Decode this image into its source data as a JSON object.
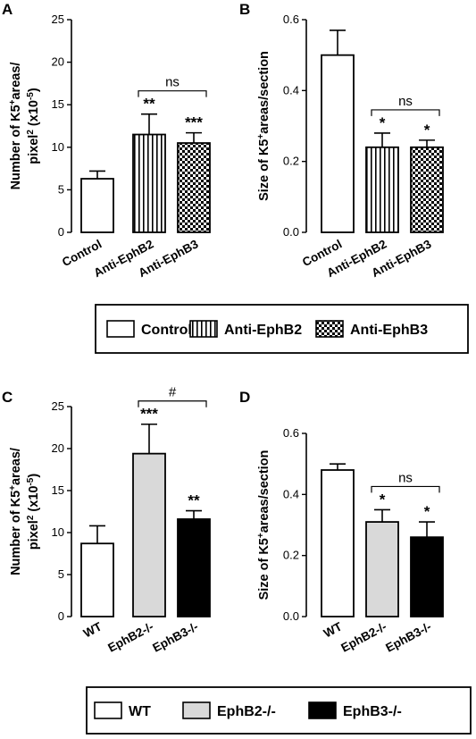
{
  "chart_data": [
    {
      "panel": "A",
      "type": "bar",
      "ylabel_line1": "Number of K5",
      "ylabel_sup": "+",
      "ylabel_line1_end": "areas/",
      "ylabel_line2": "pixel",
      "ylabel_line2_sup": "2",
      "ylabel_line2_mid": " (x10",
      "ylabel_line2_sup2": "-5",
      "ylabel_line2_end": ")",
      "ylim": [
        0,
        25
      ],
      "yticks": [
        "0",
        "5",
        "10",
        "15",
        "20",
        "25"
      ],
      "categories": [
        "Control",
        "Anti-EphB2",
        "Anti-EphB3"
      ],
      "values": [
        6.3,
        11.5,
        10.5
      ],
      "errors": [
        0.9,
        2.4,
        1.2
      ],
      "patterns": [
        "white",
        "stripes",
        "checker"
      ],
      "significance": [
        "",
        "**",
        "***"
      ],
      "bracket": {
        "from": 1,
        "to": 2,
        "label": "ns"
      }
    },
    {
      "panel": "B",
      "type": "bar",
      "ylabel_line1": "Size of K5",
      "ylabel_sup": "+",
      "ylabel_line1_end": "areas/section",
      "ylim": [
        0,
        0.6
      ],
      "yticks": [
        "0.0",
        "0.2",
        "0.4",
        "0.6"
      ],
      "categories": [
        "Control",
        "Anti-EphB2",
        "Anti-EphB3"
      ],
      "values": [
        0.5,
        0.24,
        0.24
      ],
      "errors": [
        0.07,
        0.04,
        0.02
      ],
      "patterns": [
        "white",
        "stripes",
        "checker"
      ],
      "significance": [
        "",
        "*",
        "*"
      ],
      "bracket": {
        "from": 1,
        "to": 2,
        "label": "ns"
      }
    },
    {
      "panel": "C",
      "type": "bar",
      "ylabel_line1": "Number of K5",
      "ylabel_sup": "+",
      "ylabel_line1_end": "areas/",
      "ylabel_line2": "pixel",
      "ylabel_line2_sup": "2",
      "ylabel_line2_mid": " (x10",
      "ylabel_line2_sup2": "-5",
      "ylabel_line2_end": ")",
      "ylim": [
        0,
        25
      ],
      "yticks": [
        "0",
        "5",
        "10",
        "15",
        "20",
        "25"
      ],
      "categories": [
        "WT",
        "EphB2-/-",
        "EphB3-/-"
      ],
      "values": [
        8.7,
        19.4,
        11.6
      ],
      "errors": [
        2.1,
        3.5,
        1.0
      ],
      "patterns": [
        "white",
        "gray",
        "black"
      ],
      "significance": [
        "",
        "***",
        "**"
      ],
      "bracket": {
        "from": 1,
        "to": 2,
        "label": "#"
      }
    },
    {
      "panel": "D",
      "type": "bar",
      "ylabel_line1": "Size of K5",
      "ylabel_sup": "+",
      "ylabel_line1_end": "areas/section",
      "ylim": [
        0,
        0.6
      ],
      "yticks": [
        "0.0",
        "0.2",
        "0.4",
        "0.6"
      ],
      "categories": [
        "WT",
        "EphB2-/-",
        "EphB3-/-"
      ],
      "values": [
        0.48,
        0.31,
        0.26
      ],
      "errors": [
        0.02,
        0.04,
        0.05
      ],
      "patterns": [
        "white",
        "gray",
        "black"
      ],
      "significance": [
        "",
        "*",
        "*"
      ],
      "bracket": {
        "from": 1,
        "to": 2,
        "label": "ns"
      }
    }
  ],
  "legends": [
    {
      "entries": [
        {
          "label": "Control",
          "pattern": "white"
        },
        {
          "label": "Anti-EphB2",
          "pattern": "stripes"
        },
        {
          "label": "Anti-EphB3",
          "pattern": "checker"
        }
      ]
    },
    {
      "entries": [
        {
          "label": "WT",
          "pattern": "white"
        },
        {
          "label": "EphB2-/-",
          "pattern": "gray"
        },
        {
          "label": "EphB3-/-",
          "pattern": "black"
        }
      ]
    }
  ],
  "colors": {
    "gray": "#d9d9d9",
    "black": "#000000",
    "white": "#ffffff"
  }
}
